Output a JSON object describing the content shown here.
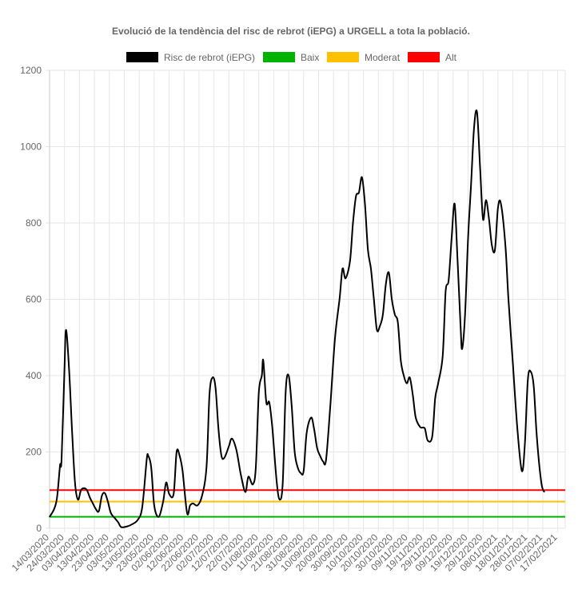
{
  "chart_data": {
    "type": "line",
    "title": "Evolució de la tendència del risc de rebrot (iEPG) a URGELL a tota la població.",
    "xlabel": "",
    "ylabel": "",
    "ylim": [
      0,
      1200
    ],
    "y_ticks": [
      "0",
      "200",
      "400",
      "600",
      "800",
      "1000",
      "1200"
    ],
    "grid": true,
    "legend_position": "top",
    "x_start": "2020-03-14",
    "x_end": "2021-02-22",
    "x_tick_labels": [
      "14/03/2020",
      "24/03/2020",
      "03/04/2020",
      "13/04/2020",
      "23/04/2020",
      "03/05/2020",
      "13/05/2020",
      "23/05/2020",
      "02/06/2020",
      "12/06/2020",
      "22/06/2020",
      "02/07/2020",
      "12/07/2020",
      "22/07/2020",
      "01/08/2020",
      "11/08/2020",
      "21/08/2020",
      "31/08/2020",
      "10/09/2020",
      "20/09/2020",
      "30/09/2020",
      "10/10/2020",
      "20/10/2020",
      "30/10/2020",
      "09/11/2020",
      "19/11/2020",
      "29/11/2020",
      "09/12/2020",
      "19/12/2020",
      "29/12/2020",
      "08/01/2021",
      "18/01/2021",
      "28/01/2021",
      "07/02/2021",
      "17/02/2021"
    ],
    "series": [
      {
        "name": "Risc de rebrot (iEPG)",
        "color": "#000000",
        "points": [
          [
            "2020-03-14",
            30
          ],
          [
            "2020-03-17",
            50
          ],
          [
            "2020-03-19",
            80
          ],
          [
            "2020-03-21",
            165
          ],
          [
            "2020-03-22",
            180
          ],
          [
            "2020-03-24",
            420
          ],
          [
            "2020-03-25",
            520
          ],
          [
            "2020-03-27",
            420
          ],
          [
            "2020-03-29",
            260
          ],
          [
            "2020-03-31",
            120
          ],
          [
            "2020-04-02",
            75
          ],
          [
            "2020-04-04",
            100
          ],
          [
            "2020-04-06",
            105
          ],
          [
            "2020-04-08",
            100
          ],
          [
            "2020-04-10",
            80
          ],
          [
            "2020-04-12",
            65
          ],
          [
            "2020-04-14",
            50
          ],
          [
            "2020-04-16",
            45
          ],
          [
            "2020-04-18",
            85
          ],
          [
            "2020-04-20",
            92
          ],
          [
            "2020-04-22",
            70
          ],
          [
            "2020-04-24",
            40
          ],
          [
            "2020-04-27",
            25
          ],
          [
            "2020-04-29",
            15
          ],
          [
            "2020-05-01",
            3
          ],
          [
            "2020-05-05",
            5
          ],
          [
            "2020-05-08",
            10
          ],
          [
            "2020-05-12",
            22
          ],
          [
            "2020-05-15",
            55
          ],
          [
            "2020-05-18",
            180
          ],
          [
            "2020-05-19",
            190
          ],
          [
            "2020-05-21",
            160
          ],
          [
            "2020-05-23",
            60
          ],
          [
            "2020-05-26",
            30
          ],
          [
            "2020-05-29",
            70
          ],
          [
            "2020-05-31",
            120
          ],
          [
            "2020-06-02",
            90
          ],
          [
            "2020-06-05",
            90
          ],
          [
            "2020-06-07",
            200
          ],
          [
            "2020-06-09",
            190
          ],
          [
            "2020-06-11",
            150
          ],
          [
            "2020-06-14",
            40
          ],
          [
            "2020-06-16",
            60
          ],
          [
            "2020-06-18",
            65
          ],
          [
            "2020-06-21",
            60
          ],
          [
            "2020-06-24",
            85
          ],
          [
            "2020-06-27",
            160
          ],
          [
            "2020-06-29",
            350
          ],
          [
            "2020-07-01",
            395
          ],
          [
            "2020-07-03",
            370
          ],
          [
            "2020-07-05",
            260
          ],
          [
            "2020-07-07",
            190
          ],
          [
            "2020-07-09",
            185
          ],
          [
            "2020-07-12",
            215
          ],
          [
            "2020-07-14",
            235
          ],
          [
            "2020-07-17",
            205
          ],
          [
            "2020-07-20",
            140
          ],
          [
            "2020-07-23",
            95
          ],
          [
            "2020-07-25",
            135
          ],
          [
            "2020-07-28",
            115
          ],
          [
            "2020-07-30",
            160
          ],
          [
            "2020-08-01",
            355
          ],
          [
            "2020-08-03",
            400
          ],
          [
            "2020-08-04",
            440
          ],
          [
            "2020-08-06",
            330
          ],
          [
            "2020-08-08",
            330
          ],
          [
            "2020-08-10",
            265
          ],
          [
            "2020-08-13",
            120
          ],
          [
            "2020-08-15",
            75
          ],
          [
            "2020-08-17",
            120
          ],
          [
            "2020-08-19",
            360
          ],
          [
            "2020-08-21",
            400
          ],
          [
            "2020-08-23",
            320
          ],
          [
            "2020-08-25",
            200
          ],
          [
            "2020-08-27",
            160
          ],
          [
            "2020-08-29",
            145
          ],
          [
            "2020-08-31",
            150
          ],
          [
            "2020-09-02",
            250
          ],
          [
            "2020-09-05",
            290
          ],
          [
            "2020-09-07",
            260
          ],
          [
            "2020-09-09",
            210
          ],
          [
            "2020-09-11",
            190
          ],
          [
            "2020-09-13",
            175
          ],
          [
            "2020-09-15",
            180
          ],
          [
            "2020-09-18",
            330
          ],
          [
            "2020-09-21",
            500
          ],
          [
            "2020-09-24",
            600
          ],
          [
            "2020-09-26",
            680
          ],
          [
            "2020-09-28",
            655
          ],
          [
            "2020-10-01",
            700
          ],
          [
            "2020-10-03",
            800
          ],
          [
            "2020-10-05",
            870
          ],
          [
            "2020-10-07",
            880
          ],
          [
            "2020-10-09",
            920
          ],
          [
            "2020-10-11",
            850
          ],
          [
            "2020-10-13",
            730
          ],
          [
            "2020-10-15",
            680
          ],
          [
            "2020-10-17",
            600
          ],
          [
            "2020-10-19",
            520
          ],
          [
            "2020-10-21",
            530
          ],
          [
            "2020-10-23",
            560
          ],
          [
            "2020-10-25",
            640
          ],
          [
            "2020-10-27",
            670
          ],
          [
            "2020-10-29",
            600
          ],
          [
            "2020-10-31",
            560
          ],
          [
            "2020-11-02",
            540
          ],
          [
            "2020-11-04",
            440
          ],
          [
            "2020-11-06",
            400
          ],
          [
            "2020-11-08",
            380
          ],
          [
            "2020-11-10",
            395
          ],
          [
            "2020-11-12",
            350
          ],
          [
            "2020-11-14",
            290
          ],
          [
            "2020-11-17",
            265
          ],
          [
            "2020-11-20",
            262
          ],
          [
            "2020-11-22",
            230
          ],
          [
            "2020-11-25",
            240
          ],
          [
            "2020-11-27",
            340
          ],
          [
            "2020-11-29",
            380
          ],
          [
            "2020-12-02",
            450
          ],
          [
            "2020-12-04",
            620
          ],
          [
            "2020-12-06",
            650
          ],
          [
            "2020-12-08",
            760
          ],
          [
            "2020-12-10",
            850
          ],
          [
            "2020-12-12",
            700
          ],
          [
            "2020-12-14",
            530
          ],
          [
            "2020-12-15",
            470
          ],
          [
            "2020-12-17",
            560
          ],
          [
            "2020-12-19",
            760
          ],
          [
            "2020-12-21",
            900
          ],
          [
            "2020-12-23",
            1050
          ],
          [
            "2020-12-25",
            1090
          ],
          [
            "2020-12-27",
            950
          ],
          [
            "2020-12-29",
            810
          ],
          [
            "2020-12-31",
            860
          ],
          [
            "2021-01-02",
            810
          ],
          [
            "2021-01-04",
            740
          ],
          [
            "2021-01-06",
            730
          ],
          [
            "2021-01-08",
            840
          ],
          [
            "2021-01-10",
            850
          ],
          [
            "2021-01-13",
            740
          ],
          [
            "2021-01-15",
            600
          ],
          [
            "2021-01-18",
            430
          ],
          [
            "2021-01-21",
            260
          ],
          [
            "2021-01-24",
            150
          ],
          [
            "2021-01-26",
            220
          ],
          [
            "2021-01-28",
            390
          ],
          [
            "2021-01-30",
            410
          ],
          [
            "2021-02-01",
            370
          ],
          [
            "2021-02-03",
            240
          ],
          [
            "2021-02-06",
            120
          ],
          [
            "2021-02-08",
            95
          ]
        ]
      },
      {
        "name": "Baix",
        "color": "#00b300",
        "value": 30
      },
      {
        "name": "Moderat",
        "color": "#ffc000",
        "value": 70
      },
      {
        "name": "Alt",
        "color": "#ff0000",
        "value": 100
      }
    ]
  }
}
